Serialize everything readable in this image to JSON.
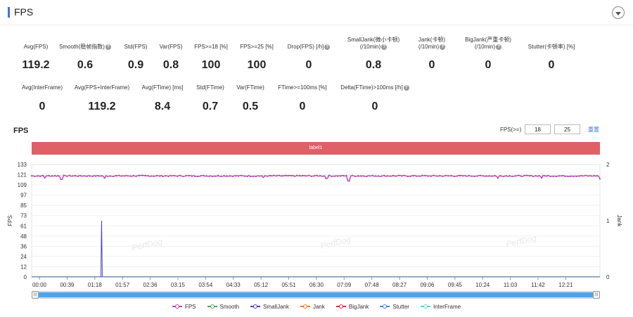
{
  "header": {
    "title": "FPS"
  },
  "stats_row1": [
    {
      "label": "Avg(FPS)",
      "value": "119.2",
      "help": false,
      "cx": 51
    },
    {
      "label": "Smooth(稳帧指数)",
      "value": "0.6",
      "help": true,
      "cx": 121
    },
    {
      "label": "Std(FPS)",
      "value": "0.9",
      "help": false,
      "cx": 193
    },
    {
      "label": "Var(FPS)",
      "value": "0.8",
      "help": false,
      "cx": 243
    },
    {
      "label": "FPS>=18 [%]",
      "value": "100",
      "help": false,
      "cx": 300
    },
    {
      "label": "FPS>=25 [%]",
      "value": "100",
      "help": false,
      "cx": 365
    },
    {
      "label": "Drop(FPS) [/h]",
      "value": "0",
      "help": true,
      "cx": 439
    },
    {
      "label": "SmallJank(微小卡顿)\n(/10min)",
      "value": "0.8",
      "help": true,
      "cx": 531
    },
    {
      "label": "Jank(卡顿)\n(/10min)",
      "value": "0",
      "help": true,
      "cx": 614
    },
    {
      "label": "BigJank(严重卡顿)\n(/10min)",
      "value": "0",
      "help": true,
      "cx": 694
    },
    {
      "label": "Stutter(卡顿率) [%]",
      "value": "0",
      "help": false,
      "cx": 784
    }
  ],
  "stats_row2": [
    {
      "label": "Avg(InterFrame)",
      "value": "0",
      "help": false,
      "cx": 60
    },
    {
      "label": "Avg(FPS+InterFrame)",
      "value": "119.2",
      "help": false,
      "cx": 145
    },
    {
      "label": "Avg(FTime) [ms]",
      "value": "8.4",
      "help": false,
      "cx": 231
    },
    {
      "label": "Std(FTime)",
      "value": "0.7",
      "help": false,
      "cx": 299
    },
    {
      "label": "Var(FTime)",
      "value": "0.5",
      "help": false,
      "cx": 356
    },
    {
      "label": "FTime>=100ms [%]",
      "value": "0",
      "help": false,
      "cx": 430
    },
    {
      "label": "Delta(FTime)>100ms [/h]",
      "value": "0",
      "help": true,
      "cx": 533
    }
  ],
  "chart": {
    "title": "FPS",
    "threshold_label": "FPS(>=)",
    "threshold_1": "18",
    "threshold_2": "25",
    "reset_label": "重置",
    "band_label": "label1",
    "watermark": "PerfDog",
    "y_left_label": "FPS",
    "y_right_label": "Jank",
    "y_left_ticks": [
      "133",
      "121",
      "109",
      "97",
      "85",
      "73",
      "61",
      "48",
      "36",
      "24",
      "12",
      "0"
    ],
    "y_right_ticks": [
      "2",
      "1",
      "0"
    ],
    "x_ticks": [
      "00:00",
      "00:39",
      "01:18",
      "01:57",
      "02:36",
      "03:15",
      "03:54",
      "04:33",
      "05:12",
      "05:51",
      "06:30",
      "07:09",
      "07:48",
      "08:27",
      "09:06",
      "09:45",
      "10:24",
      "11:03",
      "11:42",
      "12:21"
    ]
  },
  "chart_data": {
    "type": "line",
    "x_range_seconds": [
      0,
      780
    ],
    "y_left_range": [
      0,
      133
    ],
    "y_right_range": [
      0,
      2
    ],
    "series": [
      {
        "name": "FPS",
        "axis": "left",
        "baseline": 119.5,
        "dips": [
          {
            "t": 18,
            "v": 117
          },
          {
            "t": 41,
            "v": 115.5
          },
          {
            "t": 100,
            "v": 117
          },
          {
            "t": 318,
            "v": 117.5
          },
          {
            "t": 405,
            "v": 116.5
          },
          {
            "t": 435,
            "v": 113.5
          },
          {
            "t": 640,
            "v": 117
          },
          {
            "t": 700,
            "v": 117
          },
          {
            "t": 780,
            "v": 116
          }
        ]
      },
      {
        "name": "Smooth",
        "axis": "right",
        "value": 0
      },
      {
        "name": "SmallJank",
        "axis": "right",
        "events": [
          {
            "t": 96,
            "v": 1
          }
        ]
      },
      {
        "name": "Jank",
        "axis": "right",
        "value": 0
      },
      {
        "name": "BigJank",
        "axis": "right",
        "value": 0
      },
      {
        "name": "Stutter",
        "axis": "right",
        "value": 0
      },
      {
        "name": "InterFrame",
        "axis": "right",
        "value": 0
      }
    ]
  },
  "legend": [
    {
      "name": "FPS",
      "color": "#b544b4"
    },
    {
      "name": "Smooth",
      "color": "#4aa05a"
    },
    {
      "name": "SmallJank",
      "color": "#4a3ec8"
    },
    {
      "name": "Jank",
      "color": "#ee7a30"
    },
    {
      "name": "BigJank",
      "color": "#cc3030"
    },
    {
      "name": "Stutter",
      "color": "#4a82e0"
    },
    {
      "name": "InterFrame",
      "color": "#5fd2d0"
    }
  ]
}
